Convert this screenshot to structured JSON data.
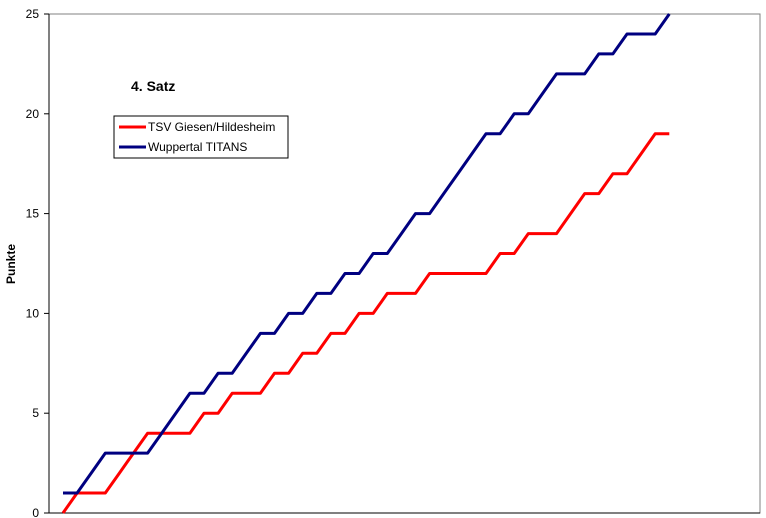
{
  "chart_data": {
    "type": "line",
    "title": "4. Satz",
    "ylabel": "Punkte",
    "xlabel": "",
    "ylim": [
      0,
      25
    ],
    "yticks": [
      0,
      5,
      10,
      15,
      20,
      25
    ],
    "grid": false,
    "legend_position": "top-left",
    "x": [
      0,
      1,
      2,
      3,
      4,
      5,
      6,
      7,
      8,
      9,
      10,
      11,
      12,
      13,
      14,
      15,
      16,
      17,
      18,
      19,
      20,
      21,
      22,
      23,
      24,
      25,
      26,
      27,
      28,
      29,
      30,
      31,
      32,
      33,
      34,
      35,
      36,
      37,
      38,
      39,
      40,
      41,
      42,
      43,
      44
    ],
    "series": [
      {
        "name": "TSV Giesen/Hildesheim",
        "color": "#ff0000",
        "values": [
          0,
          1,
          1,
          1,
          2,
          3,
          4,
          4,
          4,
          4,
          5,
          5,
          6,
          6,
          6,
          7,
          7,
          8,
          8,
          9,
          9,
          10,
          10,
          11,
          11,
          11,
          12,
          12,
          12,
          12,
          12,
          13,
          13,
          14,
          14,
          14,
          15,
          16,
          16,
          17,
          17,
          18,
          19,
          19,
          null
        ]
      },
      {
        "name": "Wuppertal TITANS",
        "color": "#000080",
        "values": [
          1,
          1,
          2,
          3,
          3,
          3,
          3,
          4,
          5,
          6,
          6,
          7,
          7,
          8,
          9,
          9,
          10,
          10,
          11,
          11,
          12,
          12,
          13,
          13,
          14,
          15,
          15,
          16,
          17,
          18,
          19,
          19,
          20,
          20,
          21,
          22,
          22,
          22,
          23,
          23,
          24,
          24,
          24,
          25,
          null
        ]
      }
    ]
  }
}
